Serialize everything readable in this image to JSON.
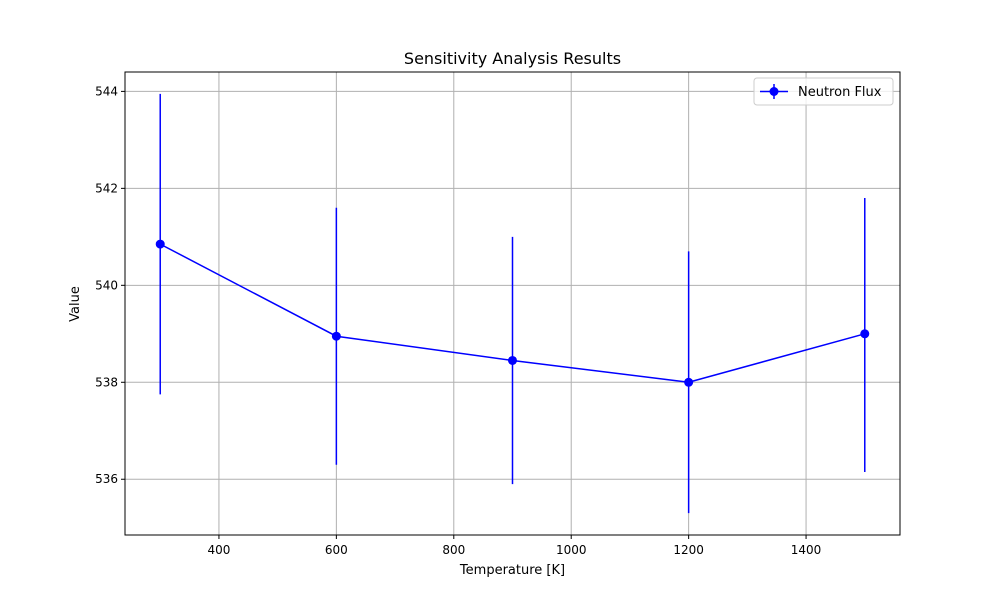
{
  "chart_data": {
    "type": "line",
    "title": "Sensitivity Analysis Results",
    "xlabel": "Temperature [K]",
    "ylabel": "Value",
    "xlim": [
      240,
      1560
    ],
    "ylim": [
      534.85,
      544.4
    ],
    "x_ticks": [
      400,
      600,
      800,
      1000,
      1200,
      1400
    ],
    "y_ticks": [
      536,
      538,
      540,
      542,
      544
    ],
    "grid": true,
    "legend_position": "top-right",
    "series": [
      {
        "name": "Neutron Flux",
        "color": "#0000ff",
        "marker": "circle",
        "points": [
          {
            "x": 300,
            "y": 540.85,
            "err_low": 537.75,
            "err_high": 543.95
          },
          {
            "x": 600,
            "y": 538.95,
            "err_low": 536.3,
            "err_high": 541.6
          },
          {
            "x": 900,
            "y": 538.45,
            "err_low": 535.9,
            "err_high": 541.0
          },
          {
            "x": 1200,
            "y": 538.0,
            "err_low": 535.3,
            "err_high": 540.7
          },
          {
            "x": 1500,
            "y": 539.0,
            "err_low": 536.15,
            "err_high": 541.8
          }
        ]
      }
    ]
  }
}
